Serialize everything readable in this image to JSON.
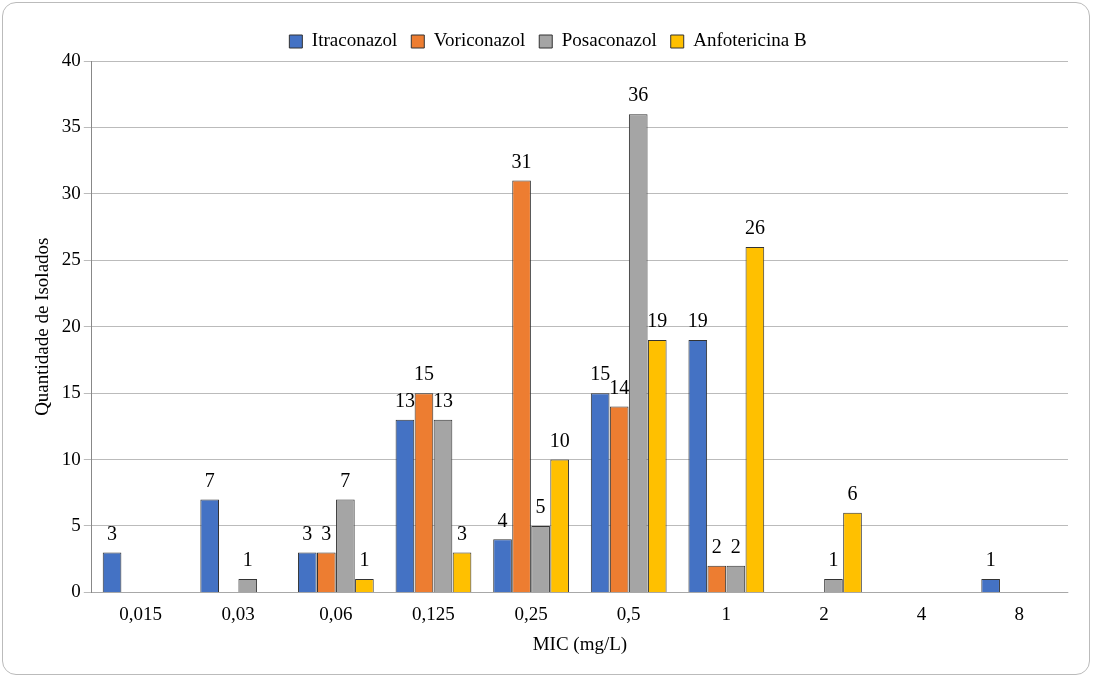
{
  "chart_data": {
    "type": "bar",
    "xlabel": "MIC (mg/L)",
    "ylabel": "Quantidade de Isolados",
    "categories": [
      "0,015",
      "0,03",
      "0,06",
      "0,125",
      "0,25",
      "0,5",
      "1",
      "2",
      "4",
      "8"
    ],
    "series": [
      {
        "name": "Itraconazol",
        "color": "#4472c4",
        "values": [
          3,
          7,
          3,
          13,
          4,
          15,
          19,
          null,
          null,
          1
        ]
      },
      {
        "name": "Voriconazol",
        "color": "#ed7d31",
        "values": [
          null,
          null,
          3,
          15,
          31,
          14,
          2,
          null,
          null,
          null
        ]
      },
      {
        "name": "Posaconazol",
        "color": "#a5a5a5",
        "values": [
          null,
          1,
          7,
          13,
          5,
          36,
          2,
          1,
          null,
          null
        ]
      },
      {
        "name": "Anfotericina B",
        "color": "#ffc000",
        "values": [
          null,
          null,
          1,
          3,
          10,
          19,
          26,
          6,
          null,
          null
        ]
      }
    ],
    "ylim": [
      0,
      40
    ],
    "yticks": [
      0,
      5,
      10,
      15,
      20,
      25,
      30,
      35,
      40
    ],
    "grid": "y",
    "legend": "top",
    "data_labels": true
  }
}
